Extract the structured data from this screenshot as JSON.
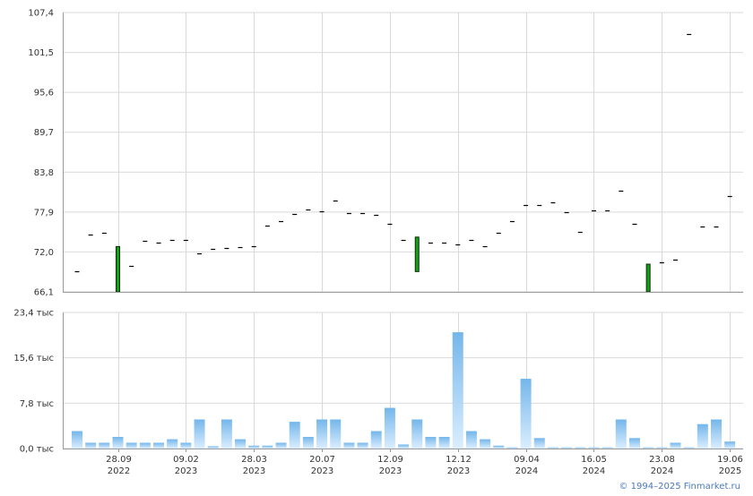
{
  "colors": {
    "grid": "#d9d9d9",
    "axis": "#9a9a9a",
    "candle_up_fill": "#16a016",
    "candle_border": "#0a2a0a",
    "volume_top": "#74b6ea",
    "volume_bottom": "#dbeeff",
    "copyright": "#4a7ab8"
  },
  "copyright": "© 1994–2025 Finmarket.ru",
  "chart_data": [
    {
      "type": "candlestick",
      "panel": "price",
      "y_ticks": [
        "107,4",
        "101,5",
        "95,6",
        "89,7",
        "83,8",
        "77,9",
        "72,0",
        "66,1"
      ],
      "y_tick_values": [
        107.4,
        101.5,
        95.6,
        89.7,
        83.8,
        77.9,
        72.0,
        66.1
      ],
      "ylim": [
        66.1,
        107.4
      ],
      "grid": true,
      "points": [
        {
          "i": 0,
          "open": 69.2,
          "close": 69.2
        },
        {
          "i": 1,
          "open": 74.6,
          "close": 74.6
        },
        {
          "i": 2,
          "open": 74.9,
          "close": 74.9
        },
        {
          "i": 3,
          "open": 66.1,
          "close": 72.8
        },
        {
          "i": 4,
          "open": 70.0,
          "close": 70.0
        },
        {
          "i": 5,
          "open": 73.6,
          "close": 73.6
        },
        {
          "i": 6,
          "open": 73.4,
          "close": 73.4
        },
        {
          "i": 7,
          "open": 73.8,
          "close": 73.8
        },
        {
          "i": 8,
          "open": 73.8,
          "close": 73.8
        },
        {
          "i": 9,
          "open": 71.8,
          "close": 71.8
        },
        {
          "i": 10,
          "open": 72.5,
          "close": 72.5
        },
        {
          "i": 11,
          "open": 72.6,
          "close": 72.6
        },
        {
          "i": 12,
          "open": 72.7,
          "close": 72.7
        },
        {
          "i": 13,
          "open": 72.8,
          "close": 72.8
        },
        {
          "i": 14,
          "open": 75.9,
          "close": 75.9
        },
        {
          "i": 15,
          "open": 76.6,
          "close": 76.6
        },
        {
          "i": 16,
          "open": 77.6,
          "close": 77.6
        },
        {
          "i": 17,
          "open": 78.3,
          "close": 78.3
        },
        {
          "i": 18,
          "open": 78.0,
          "close": 78.0
        },
        {
          "i": 19,
          "open": 79.6,
          "close": 79.6
        },
        {
          "i": 20,
          "open": 77.8,
          "close": 77.8
        },
        {
          "i": 21,
          "open": 77.8,
          "close": 77.8
        },
        {
          "i": 22,
          "open": 77.5,
          "close": 77.5
        },
        {
          "i": 23,
          "open": 76.2,
          "close": 76.2
        },
        {
          "i": 24,
          "open": 73.8,
          "close": 73.8
        },
        {
          "i": 25,
          "open": 69.1,
          "close": 74.2
        },
        {
          "i": 26,
          "open": 73.4,
          "close": 73.4
        },
        {
          "i": 27,
          "open": 73.4,
          "close": 73.4
        },
        {
          "i": 28,
          "open": 73.1,
          "close": 73.1
        },
        {
          "i": 29,
          "open": 73.8,
          "close": 73.8
        },
        {
          "i": 30,
          "open": 72.9,
          "close": 72.9
        },
        {
          "i": 31,
          "open": 74.8,
          "close": 74.8
        },
        {
          "i": 32,
          "open": 76.6,
          "close": 76.6
        },
        {
          "i": 33,
          "open": 79.0,
          "close": 79.0
        },
        {
          "i": 34,
          "open": 78.9,
          "close": 78.9
        },
        {
          "i": 35,
          "open": 79.3,
          "close": 79.3
        },
        {
          "i": 36,
          "open": 77.9,
          "close": 77.9
        },
        {
          "i": 37,
          "open": 75.0,
          "close": 75.0
        },
        {
          "i": 38,
          "open": 78.1,
          "close": 78.1
        },
        {
          "i": 39,
          "open": 78.1,
          "close": 78.1
        },
        {
          "i": 40,
          "open": 81.0,
          "close": 81.0
        },
        {
          "i": 41,
          "open": 76.2,
          "close": 76.2
        },
        {
          "i": 42,
          "open": 66.1,
          "close": 70.2
        },
        {
          "i": 43,
          "open": 70.5,
          "close": 70.5
        },
        {
          "i": 44,
          "open": 70.8,
          "close": 70.8
        },
        {
          "i": 45,
          "open": 104.2,
          "close": 104.2
        },
        {
          "i": 46,
          "open": 75.8,
          "close": 75.8
        },
        {
          "i": 47,
          "open": 75.7,
          "close": 75.7
        },
        {
          "i": 48,
          "open": 80.2,
          "close": 80.2
        }
      ]
    },
    {
      "type": "bar",
      "panel": "volume",
      "y_ticks": [
        "23,4 тыс",
        "15,6 тыс",
        "7,8 тыс",
        "0,0 тыс"
      ],
      "y_tick_values": [
        23.4,
        15.6,
        7.8,
        0.0
      ],
      "ylim": [
        0,
        23.4
      ],
      "unit": "тыс",
      "grid": true,
      "values": [
        3.0,
        1.0,
        1.0,
        2.0,
        1.0,
        1.0,
        1.0,
        1.6,
        1.0,
        5.0,
        0.4,
        5.0,
        1.6,
        0.5,
        0.5,
        1.0,
        4.6,
        2.0,
        5.0,
        5.0,
        1.0,
        1.0,
        3.0,
        7.0,
        0.7,
        5.0,
        2.0,
        2.0,
        20.0,
        3.0,
        1.6,
        0.5,
        0.2,
        12.0,
        1.8,
        0.2,
        0.2,
        0.2,
        0.2,
        0.2,
        5.0,
        1.8,
        0.2,
        0.2,
        1.0,
        0.2,
        4.2,
        5.0,
        1.2
      ]
    }
  ],
  "x_axis": {
    "labels": [
      {
        "date": "28.09",
        "year": "2022",
        "i": 3
      },
      {
        "date": "09.02",
        "year": "2023",
        "i": 8
      },
      {
        "date": "28.03",
        "year": "2023",
        "i": 13
      },
      {
        "date": "20.07",
        "year": "2023",
        "i": 18
      },
      {
        "date": "12.09",
        "year": "2023",
        "i": 23
      },
      {
        "date": "12.12",
        "year": "2023",
        "i": 28
      },
      {
        "date": "09.04",
        "year": "2024",
        "i": 33
      },
      {
        "date": "16.05",
        "year": "2024",
        "i": 38
      },
      {
        "date": "23.08",
        "year": "2024",
        "i": 43
      },
      {
        "date": "19.06",
        "year": "2025",
        "i": 48
      }
    ]
  }
}
